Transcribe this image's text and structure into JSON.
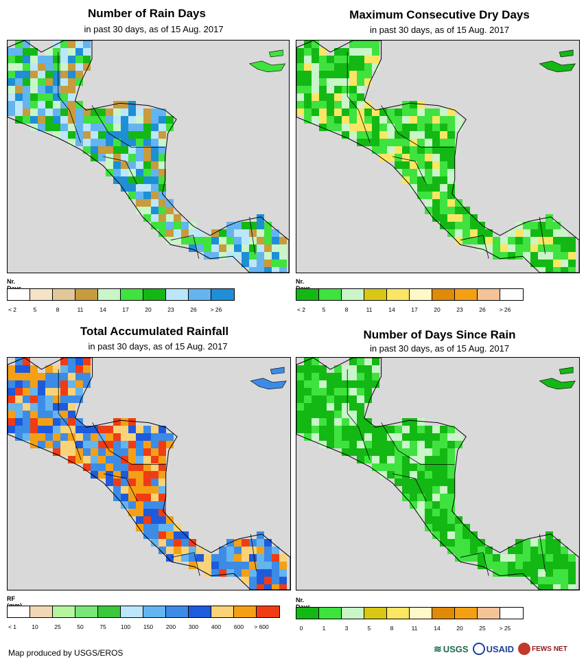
{
  "panels": [
    {
      "title": "Number of Rain Days",
      "subtitle": "in past 30 days, as of 15 Aug. 2017",
      "legend_title": "Nr. Days",
      "legend_labels": [
        "< 2",
        "5",
        "8",
        "11",
        "14",
        "17",
        "20",
        "23",
        "26",
        "> 26"
      ],
      "legend_colors": [
        "#ffffff",
        "#f5e3c8",
        "#e3c798",
        "#c89b3c",
        "#c9f5c9",
        "#3fe23f",
        "#14b814",
        "#bce6fa",
        "#64b4f0",
        "#1e8fd6"
      ],
      "land_palette": [
        "#3fe23f",
        "#14b814",
        "#bce6fa",
        "#64b4f0",
        "#c9f5c9",
        "#1e8fd6",
        "#c89b3c"
      ],
      "tone": "wet"
    },
    {
      "title": "Maximum Consecutive Dry Days",
      "subtitle": "in past 30 days, as of 15 Aug. 2017",
      "legend_title": "Nr. Days",
      "legend_labels": [
        "< 2",
        "5",
        "8",
        "11",
        "14",
        "17",
        "20",
        "23",
        "26",
        "> 26"
      ],
      "legend_colors": [
        "#14b814",
        "#3fe23f",
        "#c9f5c9",
        "#d8c814",
        "#fae664",
        "#fff8c8",
        "#e08a0a",
        "#f5a014",
        "#f5c398",
        "#ffffff"
      ],
      "land_palette": [
        "#14b814",
        "#3fe23f",
        "#14b814",
        "#3fe23f",
        "#c9f5c9",
        "#fae664"
      ],
      "tone": "dry"
    },
    {
      "title": "Total Accumulated Rainfall",
      "subtitle": "in past 30 days, as of 15 Aug. 2017",
      "legend_title": "RF (mm)",
      "legend_labels": [
        "< 1",
        "10",
        "25",
        "50",
        "75",
        "100",
        "150",
        "200",
        "300",
        "400",
        "600",
        "> 600"
      ],
      "legend_colors": [
        "#ffffff",
        "#f0d8b4",
        "#b4f5a0",
        "#78e678",
        "#3cc83c",
        "#bce6fa",
        "#64b4f0",
        "#3c8ce6",
        "#1e5adc",
        "#fad278",
        "#f5a014",
        "#f03c14"
      ],
      "land_palette": [
        "#3c8ce6",
        "#1e5adc",
        "#64b4f0",
        "#fad278",
        "#f5a014",
        "#3c8ce6",
        "#f03c14"
      ],
      "tone": "rain"
    },
    {
      "title": "Number of Days Since Rain",
      "subtitle": "in past 30 days, as of 15 Aug. 2017",
      "legend_title": "Nr. Days",
      "legend_labels": [
        "0",
        "1",
        "3",
        "5",
        "8",
        "11",
        "14",
        "20",
        "25",
        "> 25"
      ],
      "legend_colors": [
        "#14b814",
        "#3fe23f",
        "#c9f5c9",
        "#d8c814",
        "#fae664",
        "#fff8c8",
        "#e08a0a",
        "#f5a014",
        "#f5c398",
        "#ffffff"
      ],
      "land_palette": [
        "#14b814",
        "#14b814",
        "#14b814",
        "#3fe23f",
        "#3fe23f",
        "#c9f5c9"
      ],
      "tone": "since"
    }
  ],
  "credit": "Map produced by USGS/EROS",
  "logos": [
    "USGS",
    "USAID",
    "FEWS NET"
  ],
  "colors": {
    "ocean": "#d9d9d9",
    "border": "#000000"
  }
}
